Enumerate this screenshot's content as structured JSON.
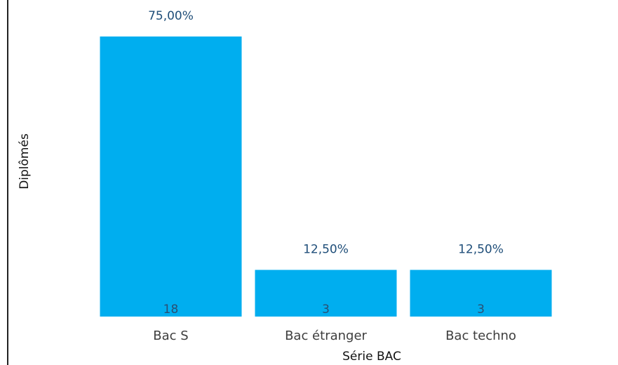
{
  "chart_data": {
    "type": "bar",
    "title": "",
    "xlabel": "Série BAC",
    "ylabel": "Diplômés",
    "categories": [
      "Bac S",
      "Bac étranger",
      "Bac techno"
    ],
    "values": [
      18,
      3,
      3
    ],
    "percent_labels": [
      "75,00%",
      "12,50%",
      "12,50%"
    ],
    "ylim": [
      0,
      18
    ],
    "grid": false,
    "legend": "none",
    "colors": {
      "bar": "#00aeef",
      "percent_label": "#1f4e79",
      "value_label": "#2a4f73",
      "frame": "#222222"
    }
  }
}
